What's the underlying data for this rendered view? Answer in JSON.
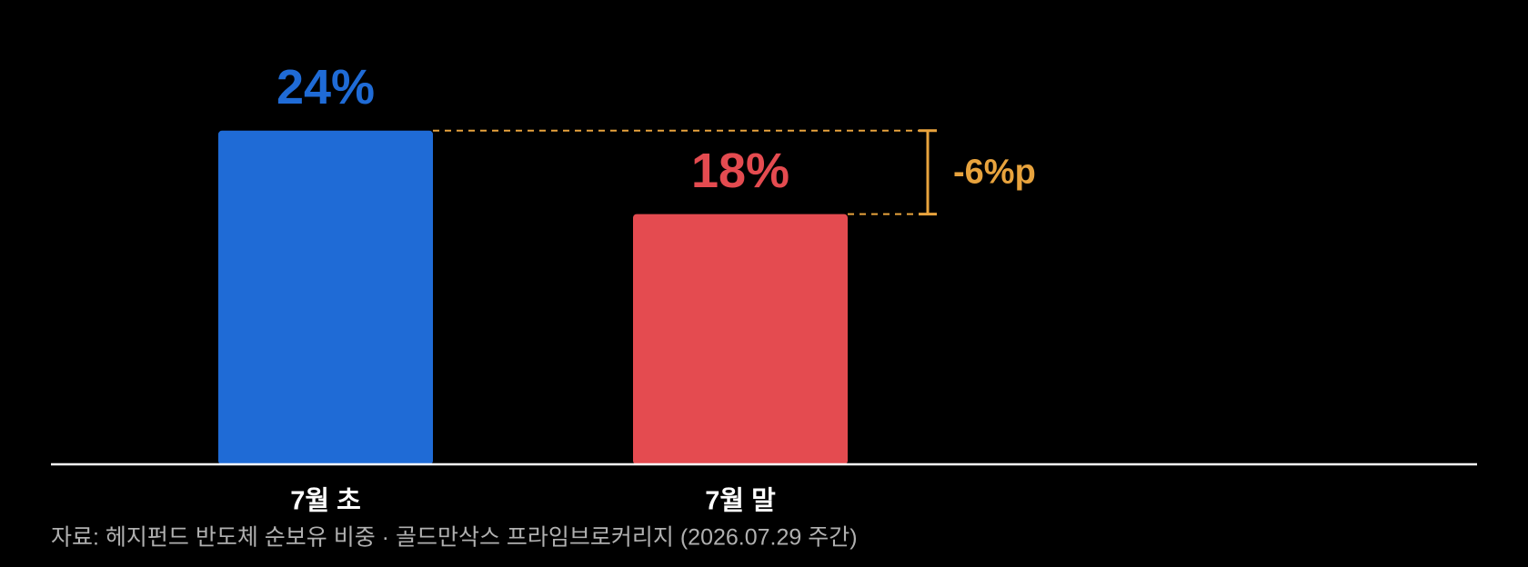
{
  "chart_data": {
    "type": "bar",
    "categories": [
      "7월 초",
      "7월 말"
    ],
    "values": [
      24,
      18
    ],
    "value_labels": [
      "24%",
      "18%"
    ],
    "colors": [
      "#1f6bd6",
      "#e44b50"
    ],
    "ylim": [
      0,
      30
    ],
    "annotation": "-6%p",
    "annotation_color": "#e8a33d",
    "source": "자료: 헤지펀드 반도체 순보유 비중 · 골드만삭스 프라임브로커리지 (2026.07.29 주간)"
  }
}
